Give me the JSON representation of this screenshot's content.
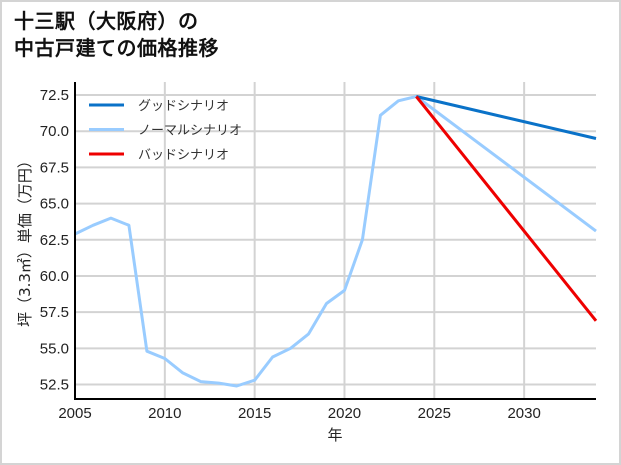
{
  "title": {
    "line1": "十三駅（大阪府）の",
    "line2": "中古戸建ての価格推移"
  },
  "colors": {
    "good": "#0a72c8",
    "normal": "#99ccff",
    "bad": "#ee0000",
    "grid": "#d3d3d3",
    "axis": "#000000",
    "border": "#d4d4d4"
  },
  "chart_data": {
    "type": "line",
    "title": "十三駅（大阪府）の中古戸建ての価格推移",
    "xlabel": "年",
    "ylabel": "坪（3.3㎡）単価（万円）",
    "xlim": [
      2005,
      2034
    ],
    "ylim": [
      51.5,
      73.4
    ],
    "grid": true,
    "legend_position": "upper left",
    "x_ticks": [
      2005,
      2010,
      2015,
      2020,
      2025,
      2030
    ],
    "x_tick_labels": [
      "2005",
      "2010",
      "2015",
      "2020",
      "2025",
      "2030"
    ],
    "y_ticks": [
      52.5,
      55.0,
      57.5,
      60.0,
      62.5,
      65.0,
      67.5,
      70.0,
      72.5
    ],
    "y_tick_labels": [
      "52.5",
      "55.0",
      "57.5",
      "60.0",
      "62.5",
      "65.0",
      "67.5",
      "70.0",
      "72.5"
    ],
    "series": [
      {
        "name": "グッドシナリオ",
        "color": "#0a72c8",
        "x": [
          2024,
          2034
        ],
        "values": [
          72.4,
          69.5
        ]
      },
      {
        "name": "ノーマルシナリオ",
        "color": "#99ccff",
        "x": [
          2005,
          2006,
          2007,
          2008,
          2009,
          2010,
          2011,
          2012,
          2013,
          2014,
          2015,
          2016,
          2017,
          2018,
          2019,
          2020,
          2021,
          2022,
          2023,
          2024,
          2034
        ],
        "values": [
          62.9,
          63.5,
          64.0,
          63.5,
          54.8,
          54.3,
          53.3,
          52.7,
          52.6,
          52.4,
          52.8,
          54.4,
          55.0,
          56.0,
          58.1,
          59.0,
          62.5,
          71.1,
          72.1,
          72.4,
          63.1
        ]
      },
      {
        "name": "バッドシナリオ",
        "color": "#ee0000",
        "x": [
          2024,
          2034
        ],
        "values": [
          72.4,
          56.9
        ]
      }
    ]
  }
}
